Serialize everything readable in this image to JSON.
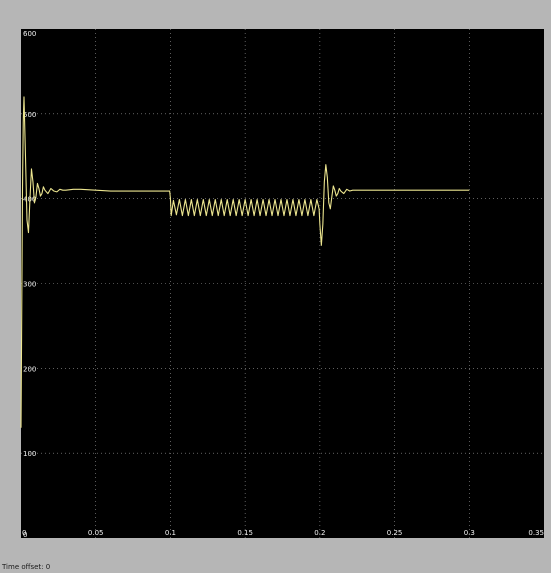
{
  "status_bar": {
    "label": "Time offset:",
    "value": "0"
  },
  "colors": {
    "frame": "#b6b6b6",
    "plot_background": "#000000",
    "grid": "#9a9a9a",
    "trace": "#ece58f",
    "tick_text": "#f2f2f2"
  },
  "chart_data": {
    "type": "line",
    "title": "",
    "xlabel": "",
    "ylabel": "",
    "xlim": [
      0,
      0.35
    ],
    "ylim": [
      0,
      600
    ],
    "x_ticks": [
      0,
      0.05,
      0.1,
      0.15,
      0.2,
      0.25,
      0.3,
      0.35
    ],
    "x_tick_labels": [
      "0",
      "0.05",
      "0.1",
      "0.15",
      "0.2",
      "0.25",
      "0.3",
      "0.35"
    ],
    "y_ticks": [
      0,
      100,
      200,
      300,
      400,
      500,
      600
    ],
    "y_tick_labels": [
      "0",
      "100",
      "200",
      "300",
      "400",
      "500",
      "600"
    ],
    "grid": true,
    "legend": "none",
    "series": [
      {
        "name": "",
        "color": "#ece58f",
        "x": [
          0,
          0.0005,
          0.001,
          0.0015,
          0.002,
          0.003,
          0.004,
          0.005,
          0.006,
          0.007,
          0.008,
          0.009,
          0.01,
          0.011,
          0.012,
          0.013,
          0.014,
          0.015,
          0.016,
          0.018,
          0.02,
          0.022,
          0.024,
          0.026,
          0.028,
          0.03,
          0.035,
          0.04,
          0.05,
          0.06,
          0.07,
          0.08,
          0.09,
          0.0995,
          0.1,
          0.1005,
          0.102,
          0.104,
          0.106,
          0.108,
          0.11,
          0.112,
          0.114,
          0.116,
          0.118,
          0.12,
          0.122,
          0.124,
          0.126,
          0.128,
          0.13,
          0.132,
          0.134,
          0.136,
          0.138,
          0.14,
          0.142,
          0.144,
          0.146,
          0.148,
          0.15,
          0.152,
          0.154,
          0.156,
          0.158,
          0.16,
          0.162,
          0.164,
          0.166,
          0.168,
          0.17,
          0.172,
          0.174,
          0.176,
          0.178,
          0.18,
          0.182,
          0.184,
          0.186,
          0.188,
          0.19,
          0.192,
          0.194,
          0.196,
          0.198,
          0.1995,
          0.2,
          0.201,
          0.202,
          0.203,
          0.204,
          0.205,
          0.206,
          0.207,
          0.208,
          0.209,
          0.21,
          0.211,
          0.212,
          0.213,
          0.214,
          0.216,
          0.218,
          0.22,
          0.222,
          0.225,
          0.23,
          0.24,
          0.25,
          0.26,
          0.27,
          0.28,
          0.29,
          0.3
        ],
        "y": [
          130,
          270,
          410,
          490,
          520,
          450,
          375,
          360,
          400,
          435,
          420,
          395,
          402,
          418,
          412,
          403,
          406,
          414,
          410,
          406,
          412,
          409,
          408,
          411,
          410,
          410,
          411,
          411,
          410,
          409,
          409,
          409,
          409,
          409,
          400,
          380,
          398,
          381,
          399,
          380,
          399,
          380,
          399,
          380,
          399,
          380,
          399,
          380,
          399,
          380,
          399,
          380,
          399,
          380,
          399,
          380,
          399,
          380,
          399,
          380,
          399,
          380,
          399,
          380,
          399,
          380,
          399,
          380,
          399,
          380,
          399,
          380,
          399,
          380,
          399,
          380,
          399,
          380,
          399,
          380,
          399,
          380,
          399,
          380,
          399,
          388,
          370,
          345,
          370,
          420,
          440,
          425,
          395,
          388,
          402,
          415,
          410,
          403,
          406,
          412,
          409,
          406,
          411,
          409,
          410,
          410,
          410,
          410,
          410,
          410,
          410,
          410,
          410,
          410
        ]
      }
    ]
  }
}
